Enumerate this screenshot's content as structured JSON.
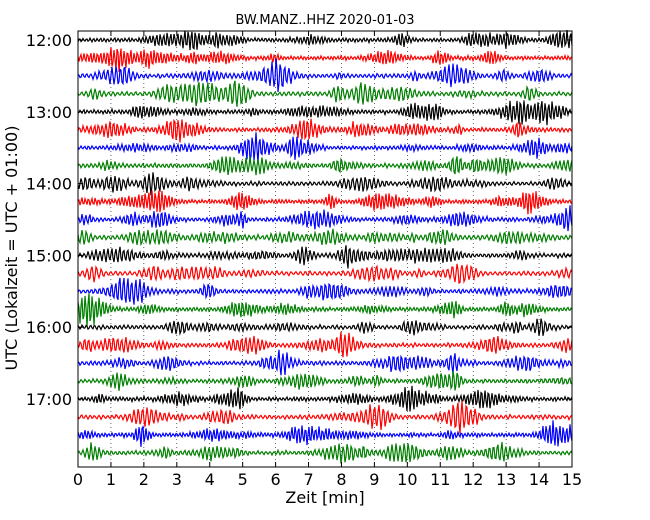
{
  "chart_data": {
    "type": "line",
    "title": "BW.MANZ..HHZ 2020-01-03",
    "xlabel": "Zeit  [min]",
    "ylabel": "UTC (Lokalzeit = UTC + 01:00)",
    "xlim": [
      0,
      15
    ],
    "x_ticks": [
      "0",
      "1",
      "2",
      "3",
      "4",
      "5",
      "6",
      "7",
      "8",
      "9",
      "10",
      "11",
      "12",
      "13",
      "14",
      "15"
    ],
    "y_tick_labels": [
      "12:00",
      "13:00",
      "14:00",
      "15:00",
      "16:00",
      "17:00"
    ],
    "traces_per_hour": 4,
    "trace_count": 24,
    "trace_colors": [
      "#000000",
      "#ff0000",
      "#0000ff",
      "#007f00"
    ],
    "grid": "vertical-dotted"
  }
}
